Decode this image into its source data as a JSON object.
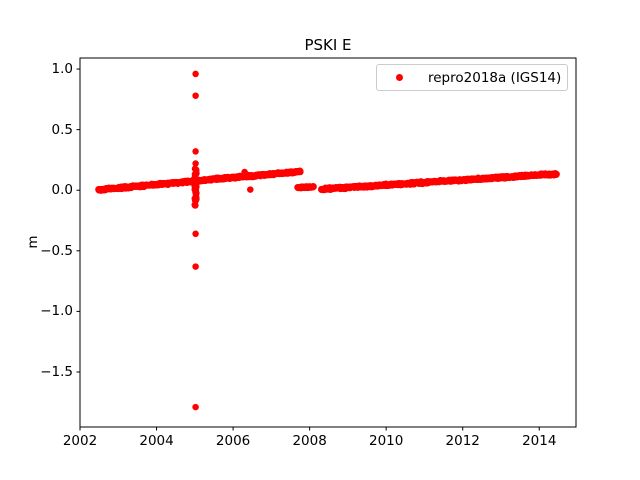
{
  "chart_data": {
    "type": "scatter",
    "title": "PSKI E",
    "xlabel": "",
    "ylabel": "m",
    "xlim": [
      2002.0,
      2014.96
    ],
    "ylim": [
      -1.954,
      1.091
    ],
    "grid": false,
    "xticks": [
      {
        "v": 2002,
        "label": "2002"
      },
      {
        "v": 2004,
        "label": "2004"
      },
      {
        "v": 2006,
        "label": "2006"
      },
      {
        "v": 2008,
        "label": "2008"
      },
      {
        "v": 2010,
        "label": "2010"
      },
      {
        "v": 2012,
        "label": "2012"
      },
      {
        "v": 2014,
        "label": "2014"
      }
    ],
    "yticks": [
      {
        "v": 1.0,
        "label": "1.0"
      },
      {
        "v": 0.5,
        "label": "0.5"
      },
      {
        "v": 0.0,
        "label": "0.0"
      },
      {
        "v": -0.5,
        "label": "−0.5"
      },
      {
        "v": -1.0,
        "label": "−1.0"
      },
      {
        "v": -1.5,
        "label": "−1.5"
      }
    ],
    "legend": {
      "label": "repro2018a (IGS14)",
      "position": "upper right",
      "border_color": "#cccccc"
    },
    "series": [
      {
        "name": "repro2018a (IGS14)",
        "color": "#ff0000",
        "marker": "circle",
        "marker_radius_px": 3.25,
        "segments": [
          {
            "x0": 2002.48,
            "x1": 2007.76,
            "y0": 0.003,
            "y1": 0.155,
            "n": 560,
            "jitter": 0.011
          },
          {
            "x0": 2007.68,
            "x1": 2008.1,
            "y0": 0.022,
            "y1": 0.028,
            "n": 50,
            "jitter": 0.008
          },
          {
            "x0": 2008.3,
            "x1": 2014.45,
            "y0": 0.008,
            "y1": 0.135,
            "n": 660,
            "jitter": 0.011
          }
        ],
        "vertical_cluster": {
          "x": 2005.02,
          "x_jitter": 0.025,
          "y0": -0.13,
          "y1": 0.18,
          "n": 45
        },
        "outliers": [
          [
            2005.02,
            0.96
          ],
          [
            2005.02,
            0.78
          ],
          [
            2005.02,
            0.32
          ],
          [
            2005.02,
            0.22
          ],
          [
            2005.02,
            -0.36
          ],
          [
            2005.02,
            -0.63
          ],
          [
            2005.02,
            -1.79
          ],
          [
            2006.3,
            0.15
          ],
          [
            2006.45,
            0.005
          ],
          [
            2007.74,
            0.16
          ]
        ]
      }
    ],
    "axis_color": "#000000",
    "background_color": "#ffffff"
  }
}
